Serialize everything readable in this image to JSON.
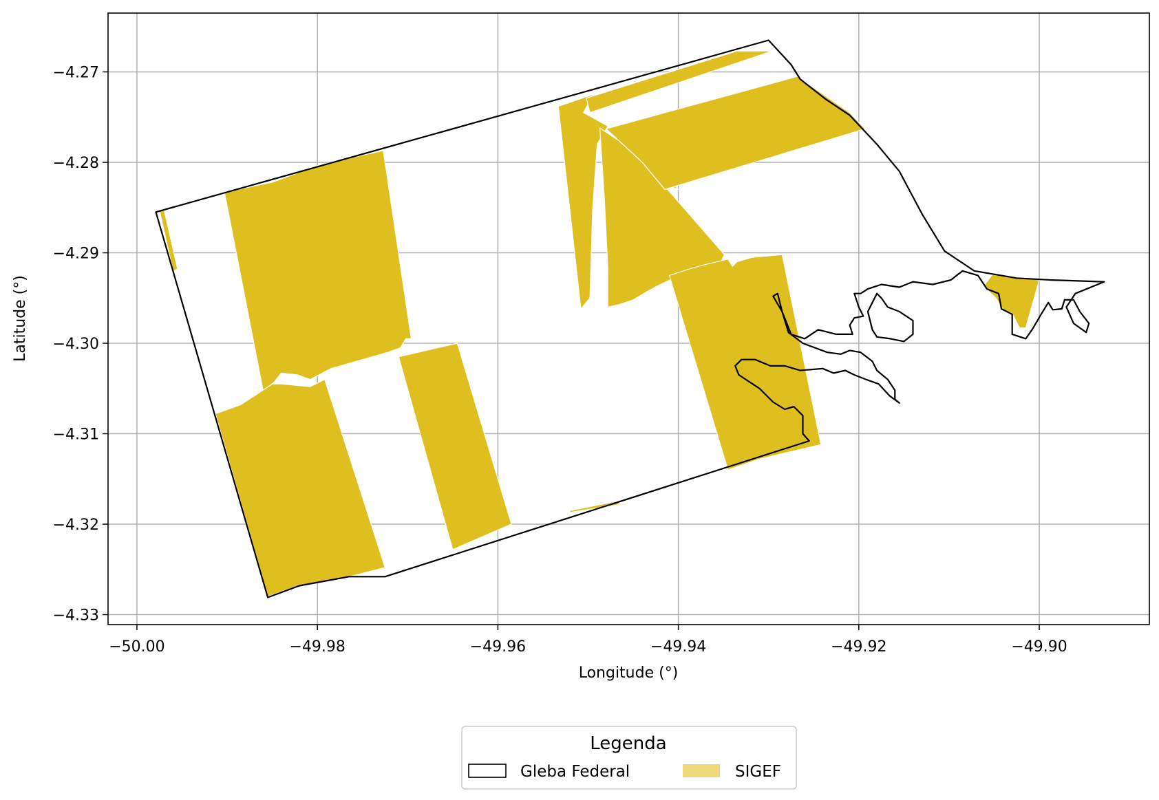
{
  "chart_data": {
    "type": "map",
    "xlabel": "Longitude (°)",
    "ylabel": "Latitude (°)",
    "xlim": [
      -50.0032,
      -49.8878
    ],
    "ylim": [
      -4.3311,
      -4.2635
    ],
    "x_ticks": [
      -50.0,
      -49.98,
      -49.96,
      -49.94,
      -49.92,
      -49.9
    ],
    "x_tick_labels": [
      "−50.00",
      "−49.98",
      "−49.96",
      "−49.94",
      "−49.92",
      "−49.90"
    ],
    "y_ticks": [
      -4.27,
      -4.28,
      -4.29,
      -4.3,
      -4.31,
      -4.32,
      -4.33
    ],
    "y_tick_labels": [
      "−4.27",
      "−4.28",
      "−4.29",
      "−4.30",
      "−4.31",
      "−4.32",
      "−4.33"
    ],
    "grid": true,
    "legend": {
      "title": "Legenda",
      "placement": "bottom-center-outside",
      "entries": [
        {
          "label": "Gleba Federal",
          "style": "outline",
          "edge_color": "#000000",
          "fill": "#ffffff"
        },
        {
          "label": "SIGEF",
          "style": "fill",
          "color": "#dfbf20"
        }
      ]
    },
    "layers": {
      "gleba": {
        "name": "Gleba Federal",
        "edge_color": "#000000",
        "coords": [
          [
            -49.9979,
            -4.2855
          ],
          [
            -49.93,
            -4.2665
          ],
          [
            -49.9275,
            -4.2692
          ],
          [
            -49.9265,
            -4.2708
          ],
          [
            -49.9237,
            -4.273
          ],
          [
            -49.921,
            -4.2748
          ],
          [
            -49.918,
            -4.278
          ],
          [
            -49.9155,
            -4.281
          ],
          [
            -49.913,
            -4.2857
          ],
          [
            -49.9105,
            -4.2898
          ],
          [
            -49.9072,
            -4.292
          ],
          [
            -49.9025,
            -4.2928
          ],
          [
            -49.8988,
            -4.293
          ],
          [
            -49.8928,
            -4.2932
          ],
          [
            -49.896,
            -4.2945
          ],
          [
            -49.897,
            -4.296
          ],
          [
            -49.8962,
            -4.2978
          ],
          [
            -49.8948,
            -4.2988
          ],
          [
            -49.8945,
            -4.2978
          ],
          [
            -49.8955,
            -4.2965
          ],
          [
            -49.8962,
            -4.2952
          ],
          [
            -49.8972,
            -4.2952
          ],
          [
            -49.8975,
            -4.2962
          ],
          [
            -49.8985,
            -4.2963
          ],
          [
            -49.899,
            -4.2955
          ],
          [
            -49.8998,
            -4.2968
          ],
          [
            -49.9008,
            -4.2985
          ],
          [
            -49.9015,
            -4.2995
          ],
          [
            -49.903,
            -4.299
          ],
          [
            -49.903,
            -4.2968
          ],
          [
            -49.9042,
            -4.2962
          ],
          [
            -49.9045,
            -4.2945
          ],
          [
            -49.9058,
            -4.294
          ],
          [
            -49.9068,
            -4.2925
          ],
          [
            -49.9085,
            -4.292
          ],
          [
            -49.9098,
            -4.293
          ],
          [
            -49.9118,
            -4.2935
          ],
          [
            -49.914,
            -4.2932
          ],
          [
            -49.9155,
            -4.2938
          ],
          [
            -49.9175,
            -4.2935
          ],
          [
            -49.919,
            -4.294
          ],
          [
            -49.9198,
            -4.2945
          ],
          [
            -49.9205,
            -4.2945
          ],
          [
            -49.92,
            -4.296
          ],
          [
            -49.9195,
            -4.297
          ],
          [
            -49.9205,
            -4.2972
          ],
          [
            -49.921,
            -4.298
          ],
          [
            -49.9207,
            -4.299
          ],
          [
            -49.9225,
            -4.299
          ],
          [
            -49.9245,
            -4.2985
          ],
          [
            -49.926,
            -4.2995
          ],
          [
            -49.9275,
            -4.299
          ],
          [
            -49.9285,
            -4.2965
          ],
          [
            -49.929,
            -4.2945
          ],
          [
            -49.9295,
            -4.2948
          ],
          [
            -49.9285,
            -4.2965
          ],
          [
            -49.9278,
            -4.2988
          ],
          [
            -49.9262,
            -4.3
          ],
          [
            -49.9235,
            -4.301
          ],
          [
            -49.922,
            -4.3012
          ],
          [
            -49.921,
            -4.3008
          ],
          [
            -49.9198,
            -4.301
          ],
          [
            -49.9185,
            -4.302
          ],
          [
            -49.918,
            -4.303
          ],
          [
            -49.9168,
            -4.304
          ],
          [
            -49.916,
            -4.3052
          ],
          [
            -49.916,
            -4.3062
          ],
          [
            -49.9155,
            -4.3066
          ],
          [
            -49.9166,
            -4.3058
          ],
          [
            -49.9178,
            -4.3045
          ],
          [
            -49.9192,
            -4.304
          ],
          [
            -49.9205,
            -4.3035
          ],
          [
            -49.9215,
            -4.303
          ],
          [
            -49.9228,
            -4.3033
          ],
          [
            -49.924,
            -4.3028
          ],
          [
            -49.9265,
            -4.303
          ],
          [
            -49.9282,
            -4.3025
          ],
          [
            -49.9298,
            -4.3025
          ],
          [
            -49.9315,
            -4.3018
          ],
          [
            -49.933,
            -4.3018
          ],
          [
            -49.9337,
            -4.3025
          ],
          [
            -49.9333,
            -4.3035
          ],
          [
            -49.931,
            -4.305
          ],
          [
            -49.9295,
            -4.3065
          ],
          [
            -49.9282,
            -4.3073
          ],
          [
            -49.9272,
            -4.307
          ],
          [
            -49.9262,
            -4.308
          ],
          [
            -49.9262,
            -4.31
          ],
          [
            -49.9255,
            -4.3108
          ],
          [
            -49.9725,
            -4.3258
          ],
          [
            -49.9765,
            -4.3258
          ],
          [
            -49.982,
            -4.3268
          ],
          [
            -49.9855,
            -4.3281
          ]
        ],
        "islands": [
          [
            [
              -49.918,
              -4.2945
            ],
            [
              -49.919,
              -4.2965
            ],
            [
              -49.9185,
              -4.2985
            ],
            [
              -49.918,
              -4.2993
            ],
            [
              -49.9165,
              -4.2995
            ],
            [
              -49.915,
              -4.2998
            ],
            [
              -49.914,
              -4.299
            ],
            [
              -49.914,
              -4.2975
            ],
            [
              -49.9155,
              -4.2965
            ],
            [
              -49.9168,
              -4.296
            ],
            [
              -49.9175,
              -4.295
            ]
          ]
        ]
      },
      "sigef": {
        "name": "SIGEF",
        "color": "#dfbf20",
        "polygons": [
          [
            [
              -49.9975,
              -4.2853
            ],
            [
              -49.997,
              -4.2852
            ],
            [
              -49.9955,
              -4.2918
            ],
            [
              -49.996,
              -4.292
            ]
          ],
          [
            [
              -49.9903,
              -4.2833
            ],
            [
              -49.985,
              -4.2822
            ],
            [
              -49.9798,
              -4.2803
            ],
            [
              -49.9727,
              -4.2787
            ],
            [
              -49.9696,
              -4.2995
            ],
            [
              -49.9702,
              -4.2995
            ],
            [
              -49.9708,
              -4.3005
            ],
            [
              -49.9722,
              -4.301
            ],
            [
              -49.975,
              -4.3018
            ],
            [
              -49.9785,
              -4.3028
            ],
            [
              -49.9808,
              -4.304
            ],
            [
              -49.9822,
              -4.3035
            ],
            [
              -49.984,
              -4.3033
            ],
            [
              -49.9848,
              -4.3043
            ],
            [
              -49.986,
              -4.3053
            ]
          ],
          [
            [
              -49.9913,
              -4.3078
            ],
            [
              -49.9885,
              -4.3068
            ],
            [
              -49.9865,
              -4.3055
            ],
            [
              -49.985,
              -4.3045
            ],
            [
              -49.984,
              -4.3045
            ],
            [
              -49.9808,
              -4.3048
            ],
            [
              -49.9792,
              -4.304
            ],
            [
              -49.9725,
              -4.3248
            ],
            [
              -49.9765,
              -4.3258
            ],
            [
              -49.982,
              -4.3268
            ],
            [
              -49.9855,
              -4.328
            ]
          ],
          [
            [
              -49.971,
              -4.3015
            ],
            [
              -49.9645,
              -4.3
            ],
            [
              -49.9585,
              -4.32
            ],
            [
              -49.965,
              -4.3228
            ]
          ],
          [
            [
              -49.9533,
              -4.2738
            ],
            [
              -49.9495,
              -4.2725
            ],
            [
              -49.9505,
              -4.2745
            ],
            [
              -49.9478,
              -4.276
            ],
            [
              -49.949,
              -4.278
            ],
            [
              -49.9495,
              -4.2852
            ],
            [
              -49.9498,
              -4.295
            ],
            [
              -49.9508,
              -4.2962
            ]
          ],
          [
            [
              -49.9487,
              -4.2762
            ],
            [
              -49.9482,
              -4.284
            ],
            [
              -49.9478,
              -4.292
            ],
            [
              -49.9478,
              -4.296
            ],
            [
              -49.9465,
              -4.2957
            ],
            [
              -49.945,
              -4.2952
            ],
            [
              -49.9435,
              -4.2943
            ],
            [
              -49.942,
              -4.2935
            ],
            [
              -49.9405,
              -4.2928
            ],
            [
              -49.9385,
              -4.292
            ],
            [
              -49.9368,
              -4.2915
            ],
            [
              -49.9355,
              -4.2915
            ],
            [
              -49.9349,
              -4.2902
            ],
            [
              -49.9418,
              -4.2823
            ],
            [
              -49.94,
              -4.283
            ],
            [
              -49.943,
              -4.28
            ]
          ],
          [
            [
              -49.9502,
              -4.2729
            ],
            [
              -49.9498,
              -4.2745
            ],
            [
              -49.9296,
              -4.2677
            ],
            [
              -49.9335,
              -4.2677
            ]
          ],
          [
            [
              -49.948,
              -4.2763
            ],
            [
              -49.9268,
              -4.2705
            ],
            [
              -49.9235,
              -4.2728
            ],
            [
              -49.921,
              -4.2745
            ],
            [
              -49.9193,
              -4.2763
            ],
            [
              -49.9415,
              -4.283
            ],
            [
              -49.944,
              -4.28
            ]
          ],
          [
            [
              -49.941,
              -4.2925
            ],
            [
              -49.9385,
              -4.2917
            ],
            [
              -49.937,
              -4.2913
            ],
            [
              -49.9345,
              -4.2907
            ],
            [
              -49.934,
              -4.2915
            ],
            [
              -49.9335,
              -4.291
            ],
            [
              -49.9318,
              -4.2905
            ],
            [
              -49.9285,
              -4.2902
            ],
            [
              -49.9242,
              -4.3112
            ],
            [
              -49.931,
              -4.3128
            ],
            [
              -49.9345,
              -4.314
            ]
          ],
          [
            [
              -49.9052,
              -4.2924
            ],
            [
              -49.9,
              -4.293
            ],
            [
              -49.9015,
              -4.2983
            ],
            [
              -49.9022,
              -4.2983
            ],
            [
              -49.903,
              -4.2967
            ],
            [
              -49.904,
              -4.2963
            ],
            [
              -49.9048,
              -4.295
            ],
            [
              -49.9062,
              -4.2937
            ]
          ],
          [
            [
              -49.952,
              -4.3185
            ],
            [
              -49.947,
              -4.3175
            ],
            [
              -49.9463,
              -4.3178
            ],
            [
              -49.952,
              -4.3187
            ]
          ]
        ]
      }
    }
  }
}
